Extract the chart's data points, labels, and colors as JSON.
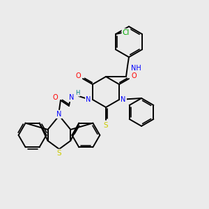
{
  "bg_color": "#ebebeb",
  "bond_color": "#000000",
  "atom_colors": {
    "N": "#0000ff",
    "O": "#ff0000",
    "S": "#cccc00",
    "Cl": "#00aa00",
    "H_label": "#008080",
    "C": "#000000"
  },
  "figsize": [
    3.0,
    3.0
  ],
  "dpi": 100
}
